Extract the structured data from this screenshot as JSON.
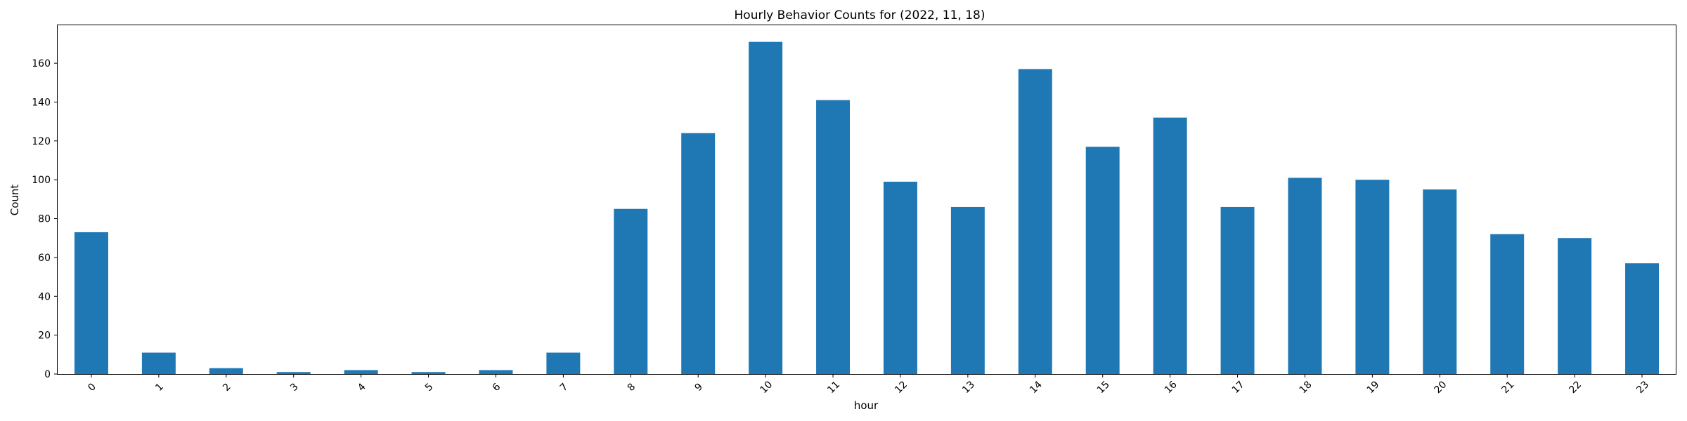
{
  "chart_data": {
    "type": "bar",
    "title": "Hourly Behavior Counts for (2022, 11, 18)",
    "xlabel": "hour",
    "ylabel": "Count",
    "categories": [
      "0",
      "1",
      "2",
      "3",
      "4",
      "5",
      "6",
      "7",
      "8",
      "9",
      "10",
      "11",
      "12",
      "13",
      "14",
      "15",
      "16",
      "17",
      "18",
      "19",
      "20",
      "21",
      "22",
      "23"
    ],
    "values": [
      73,
      11,
      3,
      1,
      2,
      1,
      2,
      11,
      85,
      124,
      171,
      141,
      99,
      86,
      157,
      117,
      132,
      86,
      101,
      100,
      95,
      72,
      70,
      57
    ],
    "yticks": [
      0,
      20,
      40,
      60,
      80,
      100,
      120,
      140,
      160
    ],
    "ylim": [
      0,
      179.55
    ],
    "bar_color": "#1f77b4",
    "grid": false,
    "legend": "none"
  }
}
